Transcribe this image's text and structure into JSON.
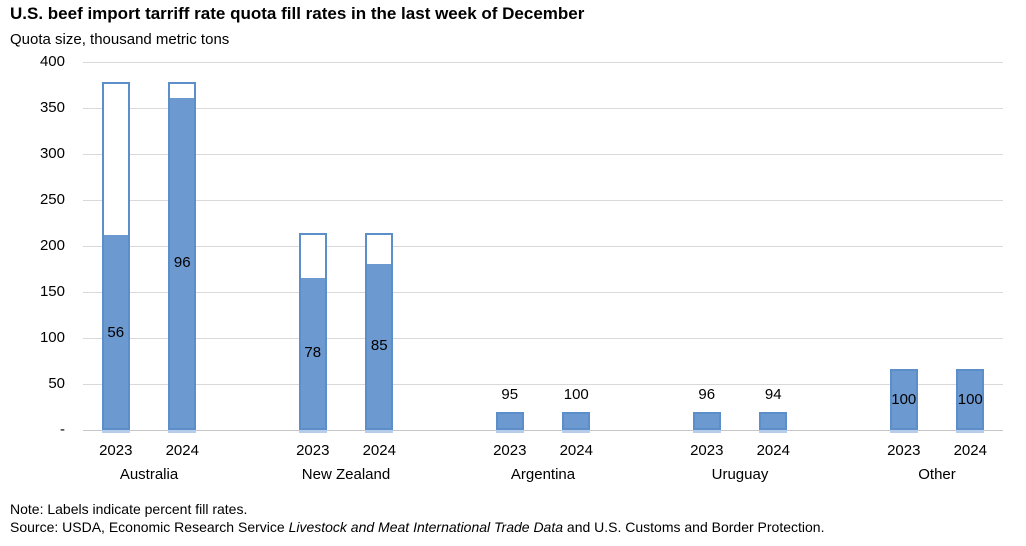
{
  "title": "U.S. beef import tarriff rate quota fill rates in the last week of December",
  "subtitle": "Quota size, thousand metric tons",
  "note": "Note: Labels indicate percent fill rates.",
  "source": {
    "prefix": "Source: USDA, Economic Research Service ",
    "italic": "Livestock and Meat International Trade Data",
    "suffix": " and U.S. Customs and Border Protection."
  },
  "colors": {
    "bar_fill": "#6C99D0",
    "bar_border": "#5C8FC9",
    "bar_under_edge": "#B7CCE9",
    "gridline": "#D9D9D9",
    "axis_line": "#C6C6C6",
    "text": "#000000"
  },
  "chart_data": {
    "type": "bar",
    "title": "U.S. beef import tarriff rate quota fill rates in the last week of December",
    "ylabel": "Quota size, thousand metric tons",
    "xlabel": "",
    "ylim": [
      0,
      400
    ],
    "ytick_step": 50,
    "ytick_labels": [
      "400",
      "350",
      "300",
      "250",
      "200",
      "150",
      "100",
      "50",
      "-"
    ],
    "grid": true,
    "legend": "none",
    "bar_semantics": "Outlined bar height = quota size (thousand metric tons); solid blue fill = filled portion; numeric label = percent fill rate",
    "groups": [
      {
        "country": "Australia",
        "bars": [
          {
            "year": "2023",
            "quota": 378,
            "fill_pct": 56,
            "label": "56",
            "label_pos": "inside"
          },
          {
            "year": "2024",
            "quota": 378,
            "fill_pct": 96,
            "label": "96",
            "label_pos": "inside"
          }
        ]
      },
      {
        "country": "New Zealand",
        "bars": [
          {
            "year": "2023",
            "quota": 214,
            "fill_pct": 78,
            "label": "78",
            "label_pos": "inside"
          },
          {
            "year": "2024",
            "quota": 214,
            "fill_pct": 85,
            "label": "85",
            "label_pos": "inside"
          }
        ]
      },
      {
        "country": "Argentina",
        "bars": [
          {
            "year": "2023",
            "quota": 20,
            "fill_pct": 95,
            "label": "95",
            "label_pos": "above"
          },
          {
            "year": "2024",
            "quota": 20,
            "fill_pct": 100,
            "label": "100",
            "label_pos": "above"
          }
        ]
      },
      {
        "country": "Uruguay",
        "bars": [
          {
            "year": "2023",
            "quota": 20,
            "fill_pct": 96,
            "label": "96",
            "label_pos": "above"
          },
          {
            "year": "2024",
            "quota": 20,
            "fill_pct": 94,
            "label": "94",
            "label_pos": "above"
          }
        ]
      },
      {
        "country": "Other",
        "bars": [
          {
            "year": "2023",
            "quota": 66,
            "fill_pct": 100,
            "label": "100",
            "label_pos": "inside"
          },
          {
            "year": "2024",
            "quota": 66,
            "fill_pct": 100,
            "label": "100",
            "label_pos": "inside"
          }
        ]
      }
    ]
  }
}
